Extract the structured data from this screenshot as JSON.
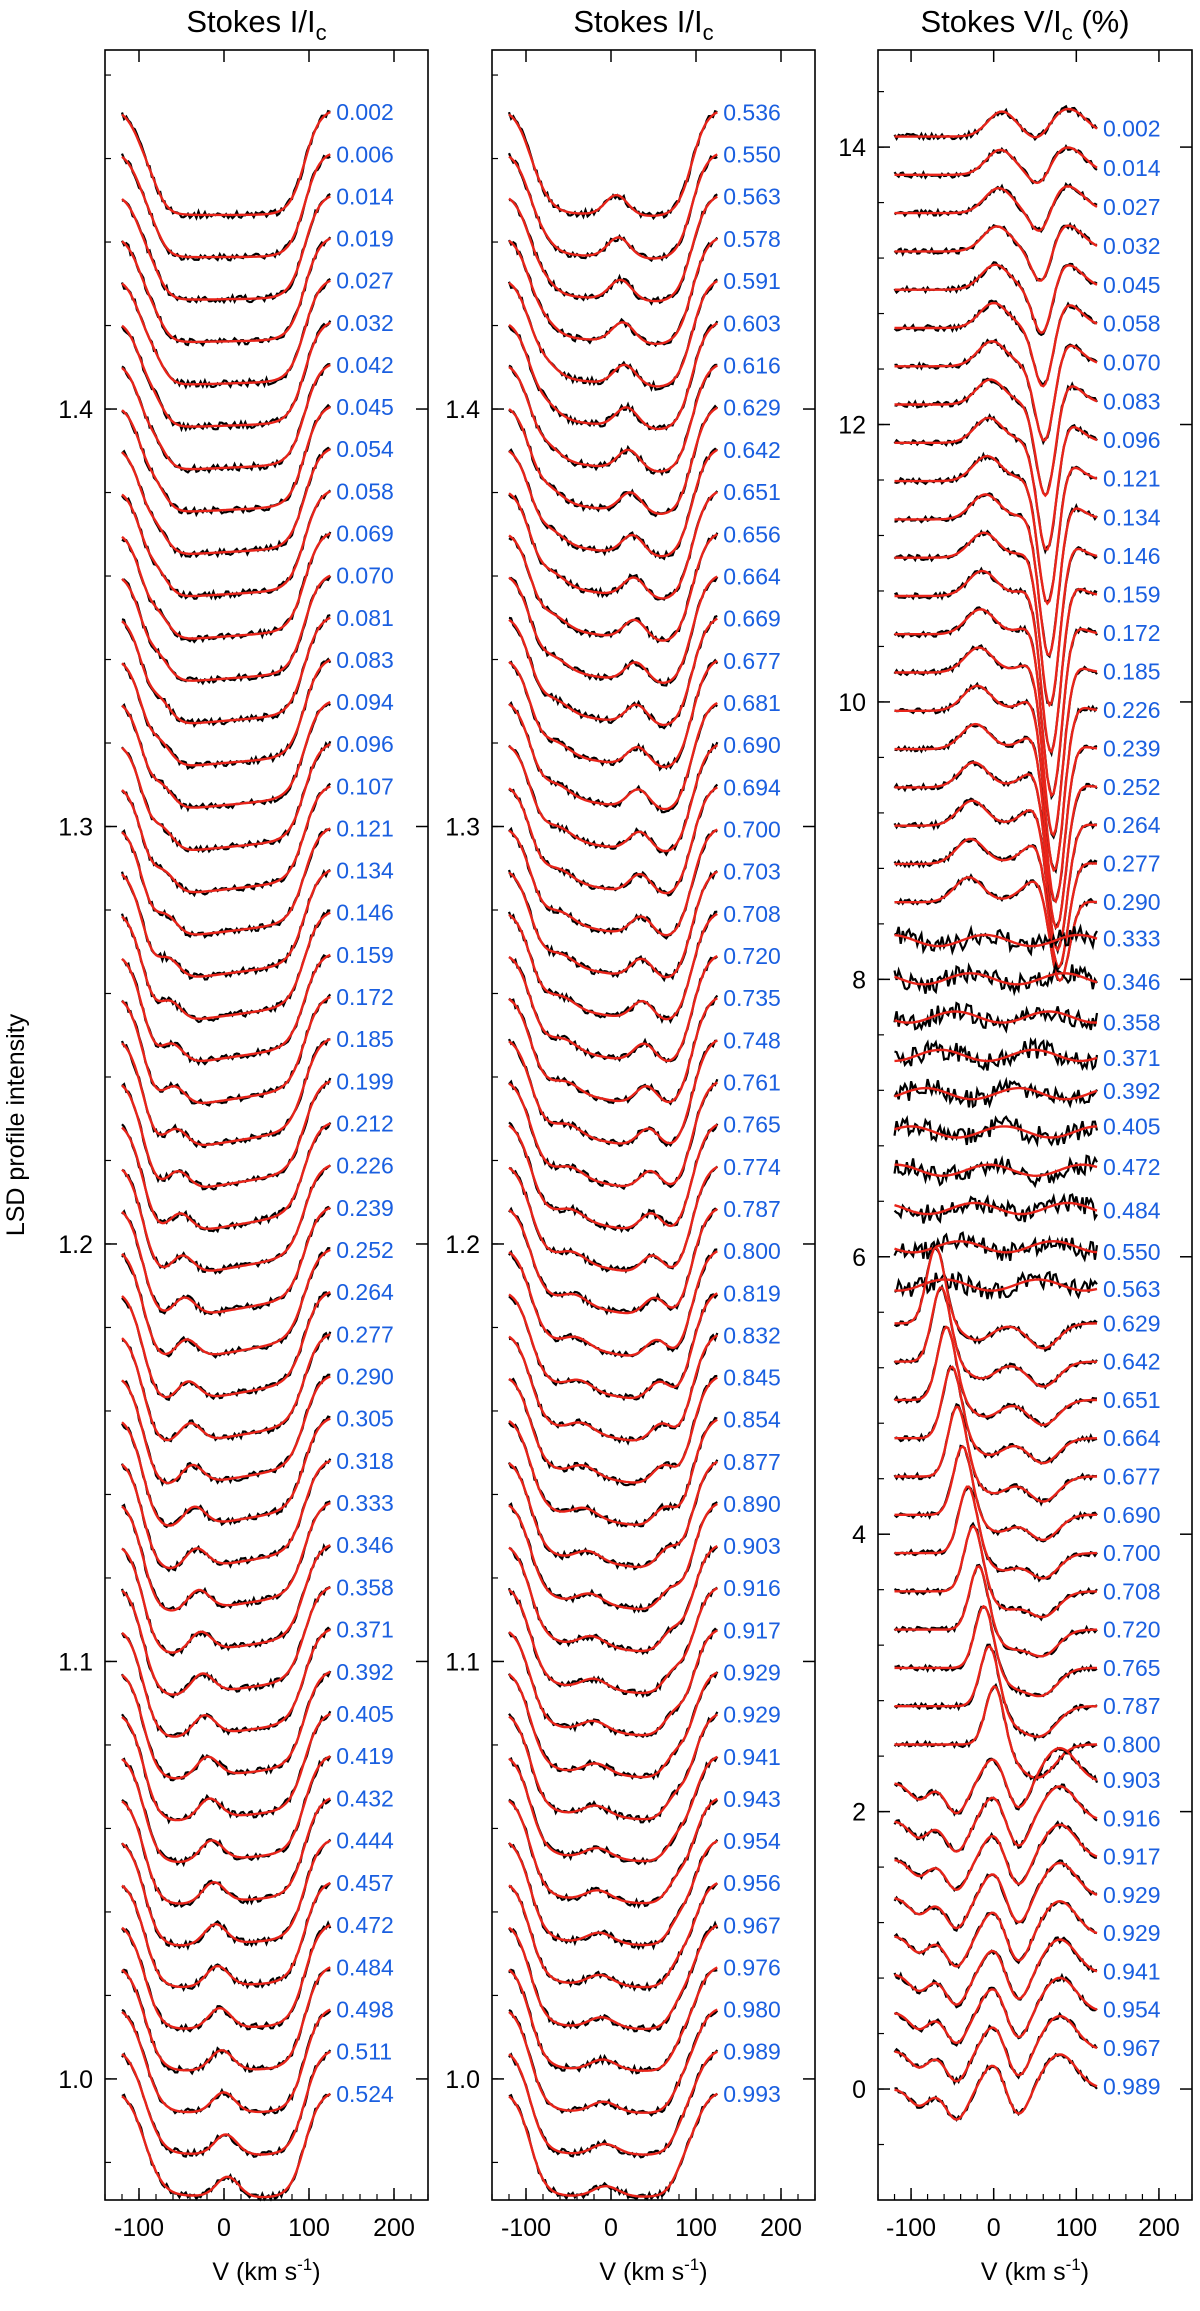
{
  "chart_data": [
    {
      "type": "line",
      "title": "Stokes I/I",
      "title_subscript": "c",
      "ylabel": "LSD profile intensity",
      "xlabel": "V (km s",
      "xlabel_superscript": "-1",
      "xlabel_close": ")",
      "xlim": [
        -140,
        240
      ],
      "ylim": [
        0.971,
        1.486
      ],
      "xticks": [
        -100,
        0,
        100,
        200
      ],
      "xtick_labels": [
        "-100",
        "0",
        "100",
        "200"
      ],
      "yticks": [
        1.0,
        1.1,
        1.2,
        1.3,
        1.4
      ],
      "ytick_labels": [
        "1.0",
        "1.1",
        "1.2",
        "1.3",
        "1.4"
      ],
      "profile_x_range": [
        -120,
        125
      ],
      "offset_step": 0.0101,
      "first_offset": 0.472,
      "series": [
        {
          "name": "observed",
          "color": "#000000"
        },
        {
          "name": "model",
          "color": "#e8241a"
        }
      ],
      "phases": [
        "0.002",
        "0.006",
        "0.014",
        "0.019",
        "0.027",
        "0.032",
        "0.042",
        "0.045",
        "0.054",
        "0.058",
        "0.069",
        "0.070",
        "0.081",
        "0.083",
        "0.094",
        "0.096",
        "0.107",
        "0.121",
        "0.134",
        "0.146",
        "0.159",
        "0.172",
        "0.185",
        "0.199",
        "0.212",
        "0.226",
        "0.239",
        "0.252",
        "0.264",
        "0.277",
        "0.290",
        "0.305",
        "0.318",
        "0.333",
        "0.346",
        "0.358",
        "0.371",
        "0.392",
        "0.405",
        "0.419",
        "0.432",
        "0.444",
        "0.457",
        "0.472",
        "0.484",
        "0.498",
        "0.511",
        "0.524"
      ]
    },
    {
      "type": "line",
      "title": "Stokes I/I",
      "title_subscript": "c",
      "ylabel": "",
      "xlabel": "V (km s",
      "xlabel_superscript": "-1",
      "xlabel_close": ")",
      "xlim": [
        -140,
        240
      ],
      "ylim": [
        0.971,
        1.486
      ],
      "xticks": [
        -100,
        0,
        100,
        200
      ],
      "xtick_labels": [
        "-100",
        "0",
        "100",
        "200"
      ],
      "yticks": [
        1.0,
        1.1,
        1.2,
        1.3,
        1.4
      ],
      "ytick_labels": [
        "1.0",
        "1.1",
        "1.2",
        "1.3",
        "1.4"
      ],
      "profile_x_range": [
        -120,
        125
      ],
      "offset_step": 0.0101,
      "first_offset": 0.472,
      "series": [
        {
          "name": "observed",
          "color": "#000000"
        },
        {
          "name": "model",
          "color": "#e8241a"
        }
      ],
      "phases": [
        "0.536",
        "0.550",
        "0.563",
        "0.578",
        "0.591",
        "0.603",
        "0.616",
        "0.629",
        "0.642",
        "0.651",
        "0.656",
        "0.664",
        "0.669",
        "0.677",
        "0.681",
        "0.690",
        "0.694",
        "0.700",
        "0.703",
        "0.708",
        "0.720",
        "0.735",
        "0.748",
        "0.761",
        "0.765",
        "0.774",
        "0.787",
        "0.800",
        "0.819",
        "0.832",
        "0.845",
        "0.854",
        "0.877",
        "0.890",
        "0.903",
        "0.916",
        "0.917",
        "0.929",
        "0.929",
        "0.941",
        "0.943",
        "0.954",
        "0.956",
        "0.967",
        "0.976",
        "0.980",
        "0.989",
        "0.993"
      ]
    },
    {
      "type": "line",
      "title": "Stokes V/I",
      "title_subscript": "c",
      "title_suffix": " (%)",
      "ylabel": "",
      "xlabel": "V (km s",
      "xlabel_superscript": "-1",
      "xlabel_close": ")",
      "xlim": [
        -140,
        240
      ],
      "ylim": [
        -0.8,
        14.7
      ],
      "xticks": [
        -100,
        0,
        100,
        200
      ],
      "xtick_labels": [
        "-100",
        "0",
        "100",
        "200"
      ],
      "yticks": [
        0,
        2,
        4,
        6,
        8,
        10,
        12,
        14
      ],
      "ytick_labels": [
        "0",
        "2",
        "4",
        "6",
        "8",
        "10",
        "12",
        "14"
      ],
      "profile_x_range": [
        -120,
        125
      ],
      "offset_step": 0.276,
      "first_offset": 0.0,
      "series": [
        {
          "name": "observed",
          "color": "#000000"
        },
        {
          "name": "model",
          "color": "#e8241a"
        }
      ],
      "phases": [
        "0.002",
        "0.014",
        "0.027",
        "0.032",
        "0.045",
        "0.058",
        "0.070",
        "0.083",
        "0.096",
        "0.121",
        "0.134",
        "0.146",
        "0.159",
        "0.172",
        "0.185",
        "0.226",
        "0.239",
        "0.252",
        "0.264",
        "0.277",
        "0.290",
        "0.333",
        "0.346",
        "0.358",
        "0.371",
        "0.392",
        "0.405",
        "0.472",
        "0.484",
        "0.550",
        "0.563",
        "0.629",
        "0.642",
        "0.651",
        "0.664",
        "0.677",
        "0.690",
        "0.700",
        "0.708",
        "0.720",
        "0.765",
        "0.787",
        "0.800",
        "0.903",
        "0.916",
        "0.917",
        "0.929",
        "0.929",
        "0.941",
        "0.954",
        "0.967",
        "0.989"
      ]
    }
  ]
}
